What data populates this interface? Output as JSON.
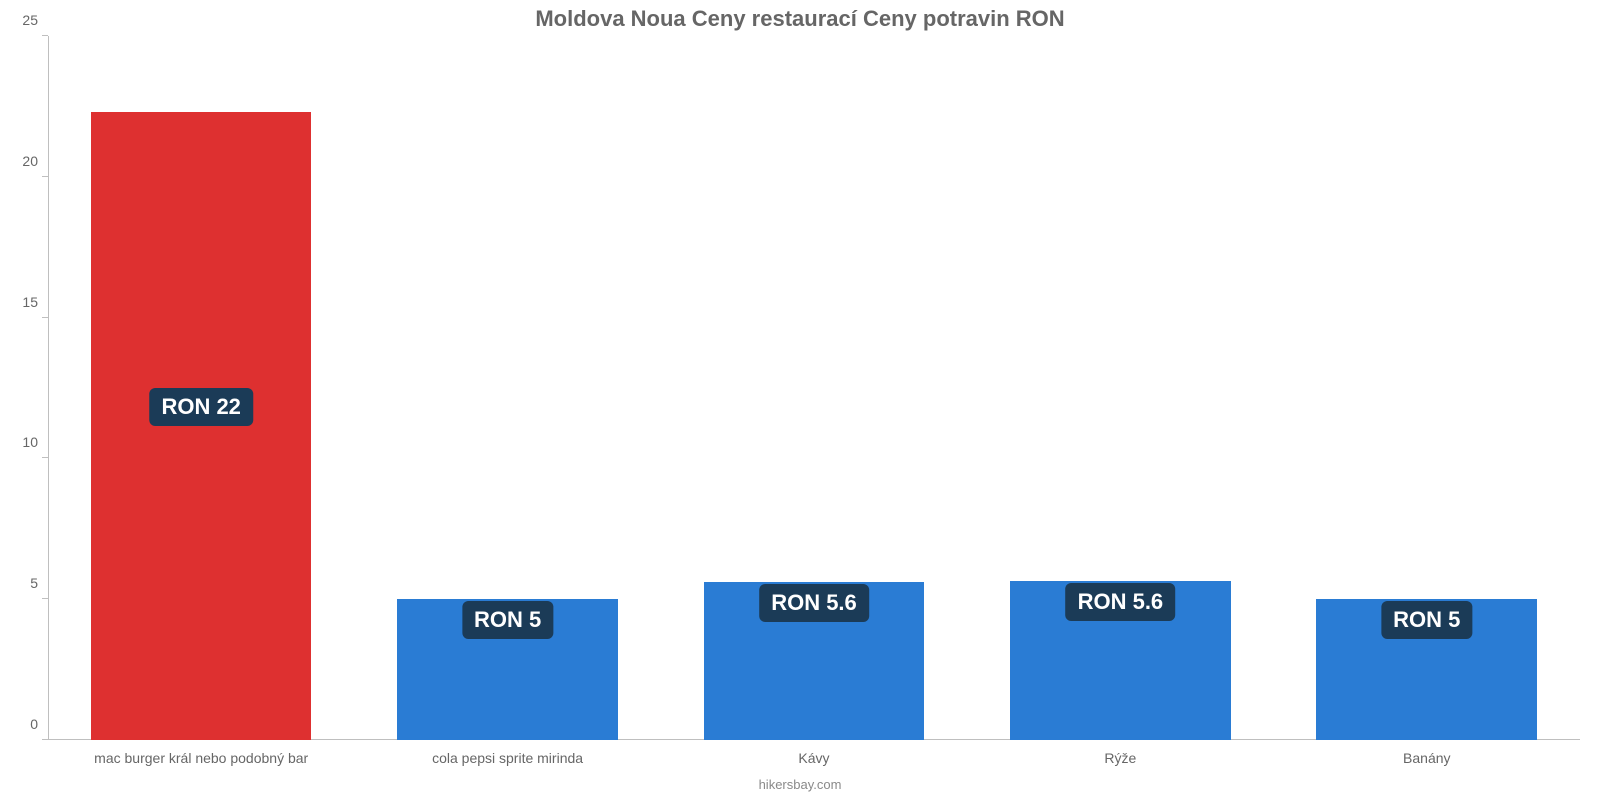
{
  "chart": {
    "type": "bar",
    "title": "Moldova Noua Ceny restaurací Ceny potravin RON",
    "title_fontsize": 22,
    "title_color": "#666666",
    "footer": "hikersbay.com",
    "footer_fontsize": 13,
    "footer_color": "#8a8a8a",
    "background_color": "#ffffff",
    "axis_line_color": "#bfbfbf",
    "ylim": [
      0,
      25
    ],
    "ytick_step": 5,
    "yticks": [
      0,
      5,
      10,
      15,
      20,
      25
    ],
    "ytick_fontsize": 14,
    "ytick_color": "#666666",
    "category_label_fontsize": 14,
    "category_label_color": "#666666",
    "bar_width": 0.72,
    "value_label_bg": "#1b3b57",
    "value_label_color": "#ffffff",
    "value_label_fontsize": 22,
    "categories": [
      "mac burger král nebo podobný bar",
      "cola pepsi sprite mirinda",
      "Kávy",
      "Rýže",
      "Banány"
    ],
    "values": [
      22,
      5,
      5.6,
      5.6,
      5
    ],
    "actual_values": [
      22.3,
      5,
      5.6,
      5.65,
      5
    ],
    "value_labels": [
      "RON 22",
      "RON 5",
      "RON 5.6",
      "RON 5.6",
      "RON 5"
    ],
    "bar_colors": [
      "#de3030",
      "#2a7cd4",
      "#2a7cd4",
      "#2a7cd4",
      "#2a7cd4"
    ]
  }
}
